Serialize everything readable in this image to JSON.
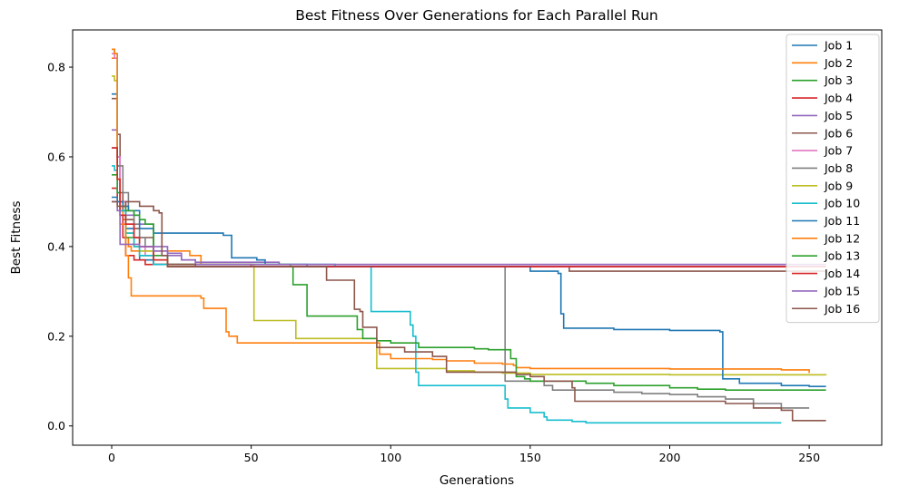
{
  "chart_data": {
    "type": "line",
    "title": "Best Fitness Over Generations for Each Parallel Run",
    "xlabel": "Generations",
    "ylabel": "Best Fitness",
    "xlim": [
      -14,
      276
    ],
    "ylim": [
      -0.043,
      0.883
    ],
    "xticks": [
      0,
      50,
      100,
      150,
      200,
      250
    ],
    "xtick_labels": [
      "0",
      "50",
      "100",
      "150",
      "200",
      "250"
    ],
    "yticks": [
      0.0,
      0.2,
      0.4,
      0.6,
      0.8
    ],
    "ytick_labels": [
      "0.0",
      "0.2",
      "0.4",
      "0.6",
      "0.8"
    ],
    "grid": false,
    "legend_position": "top-right",
    "series": [
      {
        "name": "Job 1",
        "color": "#1f77b4",
        "x": [
          0,
          1,
          2,
          3,
          5,
          8,
          10,
          15,
          20,
          25,
          30,
          35,
          50,
          60,
          70,
          80,
          100,
          150,
          200,
          256
        ],
        "y": [
          0.74,
          0.74,
          0.58,
          0.48,
          0.44,
          0.42,
          0.37,
          0.36,
          0.36,
          0.36,
          0.36,
          0.36,
          0.36,
          0.36,
          0.36,
          0.355,
          0.355,
          0.355,
          0.355,
          0.355
        ]
      },
      {
        "name": "Job 2",
        "color": "#ff7f0e",
        "x": [
          0,
          1,
          2,
          3,
          4,
          5,
          6,
          7,
          10,
          15,
          20,
          25,
          28,
          32,
          35,
          40,
          50,
          80,
          100,
          150,
          200,
          202
        ],
        "y": [
          0.82,
          0.82,
          0.55,
          0.5,
          0.46,
          0.42,
          0.4,
          0.39,
          0.39,
          0.39,
          0.39,
          0.39,
          0.38,
          0.36,
          0.36,
          0.36,
          0.355,
          0.355,
          0.355,
          0.355,
          0.355,
          0.355
        ]
      },
      {
        "name": "Job 3",
        "color": "#2ca02c",
        "x": [
          0,
          1,
          2,
          3,
          5,
          10,
          15,
          20,
          50,
          80,
          120,
          150,
          200,
          256
        ],
        "y": [
          0.84,
          0.83,
          0.6,
          0.48,
          0.42,
          0.38,
          0.36,
          0.355,
          0.355,
          0.355,
          0.355,
          0.355,
          0.355,
          0.355
        ]
      },
      {
        "name": "Job 4",
        "color": "#d62728",
        "x": [
          0,
          1,
          2,
          3,
          4,
          5,
          8,
          12,
          15,
          20,
          50,
          100,
          150,
          200,
          256
        ],
        "y": [
          0.53,
          0.53,
          0.5,
          0.47,
          0.42,
          0.38,
          0.37,
          0.36,
          0.36,
          0.355,
          0.355,
          0.355,
          0.355,
          0.355,
          0.355
        ]
      },
      {
        "name": "Job 5",
        "color": "#9467bd",
        "x": [
          0,
          1,
          2,
          3,
          5,
          10,
          15,
          20,
          25,
          30,
          60,
          100,
          150,
          200,
          256
        ],
        "y": [
          0.66,
          0.66,
          0.6,
          0.5,
          0.47,
          0.45,
          0.4,
          0.38,
          0.37,
          0.365,
          0.36,
          0.36,
          0.36,
          0.36,
          0.36
        ]
      },
      {
        "name": "Job 6",
        "color": "#8c564b",
        "x": [
          0,
          1,
          2,
          3,
          4,
          5,
          8,
          10,
          15,
          20,
          50,
          100,
          150,
          160,
          163,
          164,
          200,
          256
        ],
        "y": [
          0.73,
          0.73,
          0.65,
          0.52,
          0.48,
          0.46,
          0.44,
          0.42,
          0.36,
          0.355,
          0.355,
          0.355,
          0.355,
          0.355,
          0.355,
          0.345,
          0.345,
          0.34
        ]
      },
      {
        "name": "Job 7",
        "color": "#e377c2",
        "x": [
          0,
          1,
          2,
          3,
          5,
          8,
          10,
          12,
          15,
          20,
          50,
          100,
          150,
          200,
          256
        ],
        "y": [
          0.83,
          0.82,
          0.6,
          0.5,
          0.45,
          0.42,
          0.4,
          0.38,
          0.36,
          0.36,
          0.355,
          0.355,
          0.355,
          0.355,
          0.355
        ]
      },
      {
        "name": "Job 8",
        "color": "#7f7f7f",
        "x": [
          0,
          2,
          4,
          6,
          8,
          10,
          12,
          15,
          20,
          25,
          30,
          35,
          40,
          50,
          70,
          90,
          110,
          130,
          139,
          140,
          141,
          142,
          145,
          147,
          150,
          155,
          158,
          160,
          165,
          180,
          190,
          200,
          210,
          220,
          230,
          240,
          245,
          250
        ],
        "y": [
          0.62,
          0.58,
          0.52,
          0.48,
          0.45,
          0.42,
          0.4,
          0.36,
          0.36,
          0.36,
          0.36,
          0.36,
          0.36,
          0.355,
          0.355,
          0.355,
          0.355,
          0.355,
          0.355,
          0.355,
          0.1,
          0.1,
          0.1,
          0.1,
          0.1,
          0.09,
          0.08,
          0.08,
          0.08,
          0.075,
          0.072,
          0.07,
          0.065,
          0.06,
          0.05,
          0.04,
          0.04,
          0.04
        ]
      },
      {
        "name": "Job 9",
        "color": "#bcbd22",
        "x": [
          0,
          1,
          2,
          3,
          5,
          8,
          10,
          15,
          20,
          30,
          40,
          50,
          51,
          60,
          65,
          66,
          80,
          90,
          94,
          95,
          100,
          110,
          120,
          130,
          135,
          140,
          150,
          200,
          256
        ],
        "y": [
          0.78,
          0.77,
          0.55,
          0.47,
          0.43,
          0.4,
          0.39,
          0.37,
          0.36,
          0.36,
          0.36,
          0.36,
          0.235,
          0.235,
          0.235,
          0.195,
          0.195,
          0.195,
          0.195,
          0.128,
          0.128,
          0.128,
          0.123,
          0.12,
          0.12,
          0.118,
          0.115,
          0.114,
          0.113
        ]
      },
      {
        "name": "Job 10",
        "color": "#17becf",
        "x": [
          0,
          1,
          2,
          3,
          5,
          8,
          10,
          15,
          20,
          30,
          50,
          80,
          92,
          93,
          100,
          105,
          107,
          108,
          109,
          110,
          120,
          130,
          140,
          141,
          142,
          145,
          150,
          152,
          155,
          156,
          160,
          165,
          170,
          180,
          200,
          220,
          240
        ],
        "y": [
          0.58,
          0.57,
          0.52,
          0.48,
          0.43,
          0.4,
          0.38,
          0.36,
          0.36,
          0.36,
          0.36,
          0.355,
          0.355,
          0.255,
          0.255,
          0.255,
          0.225,
          0.2,
          0.12,
          0.09,
          0.09,
          0.09,
          0.09,
          0.06,
          0.04,
          0.04,
          0.03,
          0.03,
          0.02,
          0.013,
          0.013,
          0.01,
          0.007,
          0.007,
          0.007,
          0.007,
          0.007
        ]
      },
      {
        "name": "Job 11",
        "color": "#1f77b4",
        "x": [
          0,
          2,
          4,
          6,
          10,
          15,
          20,
          25,
          30,
          35,
          40,
          42,
          43,
          45,
          50,
          52,
          55,
          60,
          70,
          80,
          100,
          150,
          160,
          161,
          162,
          165,
          170,
          175,
          180,
          190,
          200,
          210,
          217,
          218,
          219,
          220,
          225,
          230,
          240,
          250,
          256
        ],
        "y": [
          0.51,
          0.5,
          0.49,
          0.48,
          0.44,
          0.43,
          0.43,
          0.43,
          0.43,
          0.43,
          0.425,
          0.425,
          0.375,
          0.375,
          0.375,
          0.37,
          0.36,
          0.36,
          0.355,
          0.355,
          0.355,
          0.345,
          0.34,
          0.25,
          0.218,
          0.218,
          0.218,
          0.218,
          0.215,
          0.215,
          0.213,
          0.213,
          0.213,
          0.21,
          0.105,
          0.105,
          0.095,
          0.095,
          0.09,
          0.088,
          0.088
        ]
      },
      {
        "name": "Job 12",
        "color": "#ff7f0e",
        "x": [
          0,
          1,
          2,
          3,
          5,
          6,
          7,
          10,
          15,
          20,
          30,
          32,
          33,
          38,
          40,
          41,
          42,
          45,
          50,
          60,
          80,
          95,
          96,
          100,
          110,
          115,
          120,
          130,
          140,
          144,
          145,
          150,
          200,
          240,
          250
        ],
        "y": [
          0.84,
          0.83,
          0.55,
          0.45,
          0.38,
          0.33,
          0.29,
          0.29,
          0.29,
          0.29,
          0.29,
          0.285,
          0.262,
          0.262,
          0.262,
          0.21,
          0.2,
          0.185,
          0.185,
          0.185,
          0.185,
          0.185,
          0.16,
          0.15,
          0.15,
          0.148,
          0.145,
          0.14,
          0.138,
          0.135,
          0.13,
          0.128,
          0.127,
          0.125,
          0.118
        ]
      },
      {
        "name": "Job 13",
        "color": "#2ca02c",
        "x": [
          0,
          1,
          2,
          3,
          5,
          8,
          10,
          12,
          15,
          20,
          50,
          64,
          65,
          68,
          70,
          80,
          85,
          88,
          90,
          95,
          100,
          110,
          120,
          130,
          134,
          135,
          140,
          143,
          145,
          146,
          147,
          148,
          150,
          160,
          170,
          180,
          190,
          200,
          210,
          220,
          230,
          240,
          250,
          256
        ],
        "y": [
          0.56,
          0.56,
          0.52,
          0.49,
          0.48,
          0.47,
          0.46,
          0.45,
          0.38,
          0.36,
          0.36,
          0.355,
          0.315,
          0.315,
          0.245,
          0.245,
          0.245,
          0.215,
          0.195,
          0.19,
          0.185,
          0.175,
          0.175,
          0.172,
          0.172,
          0.17,
          0.17,
          0.15,
          0.11,
          0.11,
          0.11,
          0.105,
          0.1,
          0.1,
          0.095,
          0.09,
          0.09,
          0.085,
          0.082,
          0.08,
          0.08,
          0.08,
          0.08,
          0.08
        ]
      },
      {
        "name": "Job 14",
        "color": "#d62728",
        "x": [
          0,
          1,
          2,
          3,
          5,
          8,
          10,
          15,
          20,
          50,
          100,
          150,
          200,
          256
        ],
        "y": [
          0.62,
          0.62,
          0.55,
          0.47,
          0.45,
          0.42,
          0.4,
          0.37,
          0.36,
          0.355,
          0.355,
          0.355,
          0.355,
          0.355
        ]
      },
      {
        "name": "Job 15",
        "color": "#9467bd",
        "x": [
          0,
          1,
          2,
          3,
          5,
          8,
          10,
          15,
          20,
          25,
          30,
          50,
          100,
          150,
          200,
          256
        ],
        "y": [
          0.5,
          0.5,
          0.48,
          0.405,
          0.405,
          0.405,
          0.4,
          0.39,
          0.385,
          0.37,
          0.36,
          0.36,
          0.36,
          0.36,
          0.36,
          0.36
        ]
      },
      {
        "name": "Job 16",
        "color": "#8c564b",
        "x": [
          0,
          2,
          5,
          8,
          10,
          12,
          15,
          17,
          18,
          20,
          25,
          30,
          50,
          70,
          75,
          77,
          80,
          85,
          87,
          89,
          90,
          95,
          100,
          105,
          110,
          115,
          119,
          120,
          125,
          130,
          140,
          145,
          150,
          155,
          165,
          166,
          175,
          176,
          180,
          190,
          200,
          210,
          220,
          230,
          235,
          240,
          243,
          244,
          250,
          256
        ],
        "y": [
          0.5,
          0.49,
          0.5,
          0.5,
          0.49,
          0.49,
          0.48,
          0.475,
          0.38,
          0.36,
          0.36,
          0.355,
          0.355,
          0.355,
          0.355,
          0.325,
          0.325,
          0.325,
          0.26,
          0.255,
          0.22,
          0.175,
          0.175,
          0.165,
          0.165,
          0.155,
          0.155,
          0.12,
          0.12,
          0.12,
          0.12,
          0.115,
          0.11,
          0.1,
          0.085,
          0.055,
          0.055,
          0.055,
          0.055,
          0.055,
          0.055,
          0.055,
          0.05,
          0.04,
          0.04,
          0.035,
          0.035,
          0.012,
          0.012,
          0.012
        ]
      }
    ]
  }
}
